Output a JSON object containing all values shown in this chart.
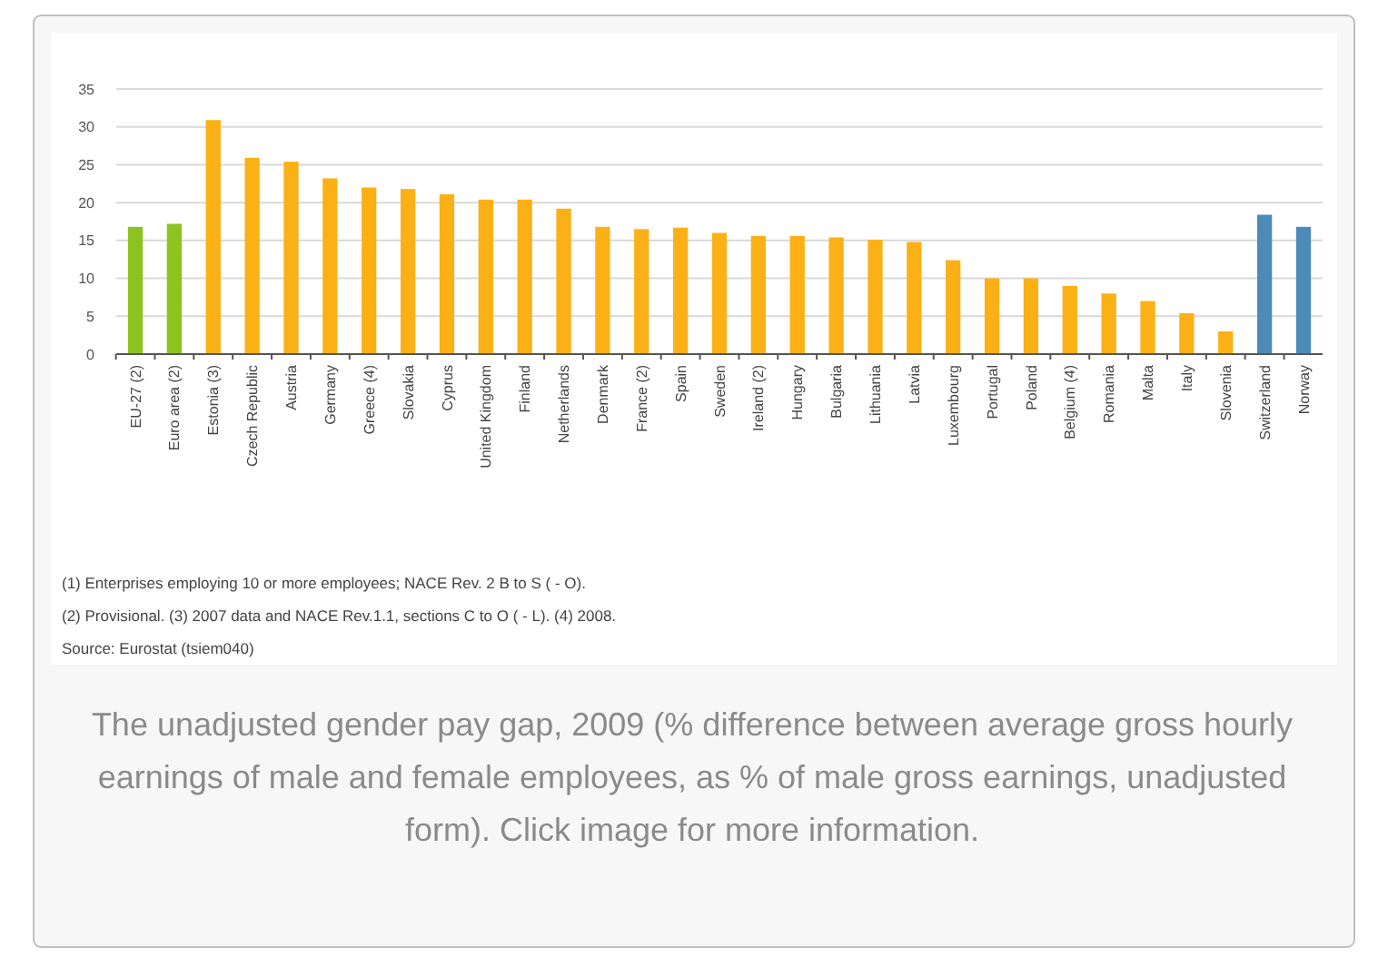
{
  "chart_data": {
    "type": "bar",
    "title": "The unadjusted gender pay gap, 2009 (% difference between average gross hourly earnings of male and female employees, as % of male gross earnings, unadjusted form). Click image for more information.",
    "categories": [
      "EU-27 (2)",
      "Euro area (2)",
      "Estonia (3)",
      "Czech Republic",
      "Austria",
      "Germany",
      "Greece (4)",
      "Slovakia",
      "Cyprus",
      "United Kingdom",
      "Finland",
      "Netherlands",
      "Denmark",
      "France (2)",
      "Spain",
      "Sweden",
      "Ireland (2)",
      "Hungary",
      "Bulgaria",
      "Lithuania",
      "Latvia",
      "Luxembourg",
      "Portugal",
      "Poland",
      "Belgium (4)",
      "Romania",
      "Malta",
      "Italy",
      "Slovenia",
      "Switzerland",
      "Norway"
    ],
    "values": [
      16.8,
      17.2,
      30.9,
      25.9,
      25.4,
      23.2,
      22.0,
      21.8,
      21.1,
      20.4,
      20.4,
      19.2,
      16.8,
      16.5,
      16.7,
      16.0,
      15.6,
      15.6,
      15.4,
      15.1,
      14.8,
      12.4,
      10.0,
      10.0,
      9.0,
      8.0,
      7.0,
      5.4,
      3.0,
      18.4,
      16.8
    ],
    "colors": [
      "#8dc21f",
      "#8dc21f",
      "#fbb116",
      "#fbb116",
      "#fbb116",
      "#fbb116",
      "#fbb116",
      "#fbb116",
      "#fbb116",
      "#fbb116",
      "#fbb116",
      "#fbb116",
      "#fbb116",
      "#fbb116",
      "#fbb116",
      "#fbb116",
      "#fbb116",
      "#fbb116",
      "#fbb116",
      "#fbb116",
      "#fbb116",
      "#fbb116",
      "#fbb116",
      "#fbb116",
      "#fbb116",
      "#fbb116",
      "#fbb116",
      "#fbb116",
      "#fbb116",
      "#4d8ab8",
      "#4d8ab8"
    ],
    "ylim": [
      0,
      35
    ],
    "yticks": [
      0,
      5,
      10,
      15,
      20,
      25,
      30,
      35
    ],
    "grid": "y",
    "annotations": [
      "(1) Enterprises employing 10 or more employees; NACE Rev. 2 B to S ( - O).",
      "(2) Provisional. (3) 2007 data and NACE Rev.1.1, sections C to O ( - L). (4) 2008.",
      "Source: Eurostat (tsiem040)"
    ]
  }
}
